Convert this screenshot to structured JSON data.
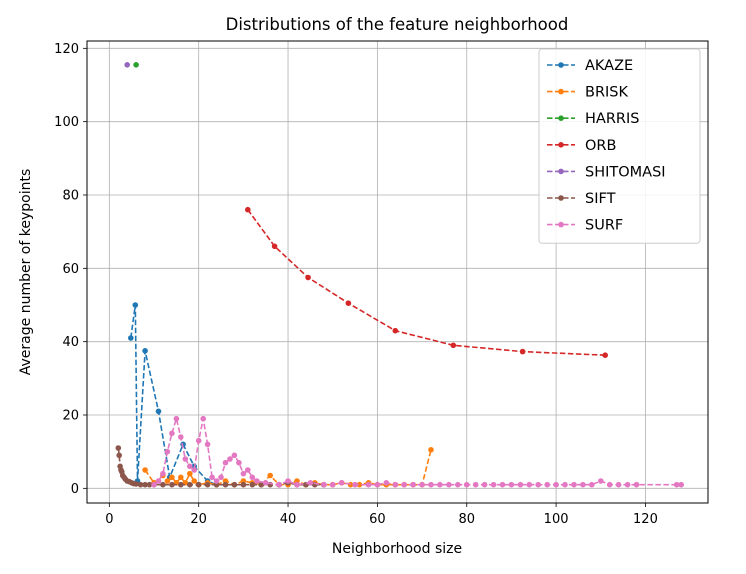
{
  "chart_data": {
    "type": "line",
    "title": "Distributions of the feature neighborhood",
    "xlabel": "Neighborhood size",
    "ylabel": "Average number of keypoints",
    "xlim": [
      -5,
      134
    ],
    "ylim": [
      -4,
      122
    ],
    "xticks": [
      0,
      20,
      40,
      60,
      80,
      100,
      120
    ],
    "yticks": [
      0,
      20,
      40,
      60,
      80,
      100,
      120
    ],
    "grid": true,
    "legend_position": "top-right",
    "line_style": "dashed",
    "series": [
      {
        "name": "AKAZE",
        "color": "#1f77b4",
        "points": [
          [
            4.8,
            41
          ],
          [
            5.8,
            50
          ],
          [
            6.3,
            2
          ],
          [
            8,
            37.5
          ],
          [
            11,
            21
          ],
          [
            13.5,
            3
          ],
          [
            16.5,
            12
          ],
          [
            19,
            6
          ],
          [
            22,
            2
          ],
          [
            24,
            1
          ]
        ]
      },
      {
        "name": "BRISK",
        "color": "#ff7f0e",
        "points": [
          [
            8,
            5
          ],
          [
            10,
            1.5
          ],
          [
            12,
            3.5
          ],
          [
            13,
            2
          ],
          [
            14,
            3
          ],
          [
            15,
            1.5
          ],
          [
            16,
            3
          ],
          [
            17,
            1.5
          ],
          [
            18,
            4
          ],
          [
            19,
            2
          ],
          [
            20,
            1
          ],
          [
            22,
            1.5
          ],
          [
            24,
            1
          ],
          [
            26,
            2
          ],
          [
            28,
            1
          ],
          [
            30,
            2
          ],
          [
            32,
            1.5
          ],
          [
            34,
            1
          ],
          [
            36,
            3.5
          ],
          [
            38,
            1
          ],
          [
            40,
            1
          ],
          [
            42,
            2
          ],
          [
            44,
            1
          ],
          [
            46,
            1.5
          ],
          [
            48,
            1
          ],
          [
            50,
            1
          ],
          [
            52,
            1.5
          ],
          [
            54,
            1
          ],
          [
            56,
            1
          ],
          [
            58,
            1.5
          ],
          [
            60,
            1
          ],
          [
            62,
            1
          ],
          [
            64,
            1
          ],
          [
            66,
            1
          ],
          [
            68,
            1
          ],
          [
            70,
            1
          ],
          [
            72,
            10.5
          ]
        ]
      },
      {
        "name": "HARRIS",
        "color": "#2ca02c",
        "points": [
          [
            6,
            115.5
          ]
        ]
      },
      {
        "name": "ORB",
        "color": "#d62728",
        "points": [
          [
            31,
            76
          ],
          [
            37,
            66
          ],
          [
            44.5,
            57.5
          ],
          [
            53.5,
            50.5
          ],
          [
            64,
            43
          ],
          [
            77,
            39
          ],
          [
            92.5,
            37.3
          ],
          [
            111,
            36.3
          ]
        ]
      },
      {
        "name": "SHITOMASI",
        "color": "#9467bd",
        "points": [
          [
            4,
            115.5
          ]
        ]
      },
      {
        "name": "SIFT",
        "color": "#8c564b",
        "points": [
          [
            2,
            11
          ],
          [
            2.2,
            9
          ],
          [
            2.4,
            6
          ],
          [
            2.6,
            5
          ],
          [
            2.8,
            4.5
          ],
          [
            3,
            3.5
          ],
          [
            3.3,
            3
          ],
          [
            3.6,
            2.5
          ],
          [
            4,
            2
          ],
          [
            4.5,
            1.8
          ],
          [
            5,
            1.5
          ],
          [
            5.5,
            1.3
          ],
          [
            6,
            1.2
          ],
          [
            7,
            1
          ],
          [
            8,
            1
          ],
          [
            9,
            1
          ],
          [
            10,
            1
          ],
          [
            12,
            1
          ],
          [
            14,
            1
          ],
          [
            16,
            1
          ],
          [
            18,
            1
          ],
          [
            20,
            1
          ],
          [
            22,
            1
          ],
          [
            24,
            1
          ],
          [
            26,
            1
          ],
          [
            28,
            1
          ],
          [
            30,
            1
          ],
          [
            32,
            1
          ],
          [
            34,
            1
          ],
          [
            36,
            1
          ],
          [
            38,
            1
          ],
          [
            40,
            1.5
          ],
          [
            42,
            1
          ],
          [
            44,
            1
          ],
          [
            46,
            1
          ],
          [
            48,
            1
          ]
        ]
      },
      {
        "name": "SURF",
        "color": "#e377c2",
        "points": [
          [
            10,
            1
          ],
          [
            11,
            2
          ],
          [
            12,
            4
          ],
          [
            13,
            10
          ],
          [
            14,
            15
          ],
          [
            15,
            19
          ],
          [
            16,
            14
          ],
          [
            17,
            8
          ],
          [
            18,
            6
          ],
          [
            19,
            5
          ],
          [
            20,
            13
          ],
          [
            21,
            19
          ],
          [
            22,
            12
          ],
          [
            23,
            3
          ],
          [
            24,
            2
          ],
          [
            25,
            3
          ],
          [
            26,
            7
          ],
          [
            27,
            8
          ],
          [
            28,
            9
          ],
          [
            29,
            7
          ],
          [
            30,
            4
          ],
          [
            31,
            5
          ],
          [
            32,
            3
          ],
          [
            33,
            2
          ],
          [
            35,
            1.5
          ],
          [
            38,
            1
          ],
          [
            40,
            2
          ],
          [
            42,
            1
          ],
          [
            45,
            1.5
          ],
          [
            48,
            1
          ],
          [
            50,
            1
          ],
          [
            52,
            1.5
          ],
          [
            55,
            1
          ],
          [
            58,
            1
          ],
          [
            60,
            1
          ],
          [
            62,
            1.5
          ],
          [
            64,
            1
          ],
          [
            66,
            1
          ],
          [
            68,
            1
          ],
          [
            70,
            1
          ],
          [
            72,
            1
          ],
          [
            74,
            1
          ],
          [
            76,
            1
          ],
          [
            78,
            1
          ],
          [
            80,
            1
          ],
          [
            82,
            1
          ],
          [
            84,
            1
          ],
          [
            86,
            1
          ],
          [
            88,
            1
          ],
          [
            90,
            1
          ],
          [
            92,
            1
          ],
          [
            94,
            1
          ],
          [
            96,
            1
          ],
          [
            98,
            1
          ],
          [
            100,
            1
          ],
          [
            102,
            1
          ],
          [
            104,
            1
          ],
          [
            106,
            1
          ],
          [
            108,
            1
          ],
          [
            110,
            2
          ],
          [
            112,
            1
          ],
          [
            114,
            1
          ],
          [
            116,
            1
          ],
          [
            118,
            1
          ],
          [
            127,
            1
          ],
          [
            128,
            1
          ]
        ]
      }
    ]
  }
}
